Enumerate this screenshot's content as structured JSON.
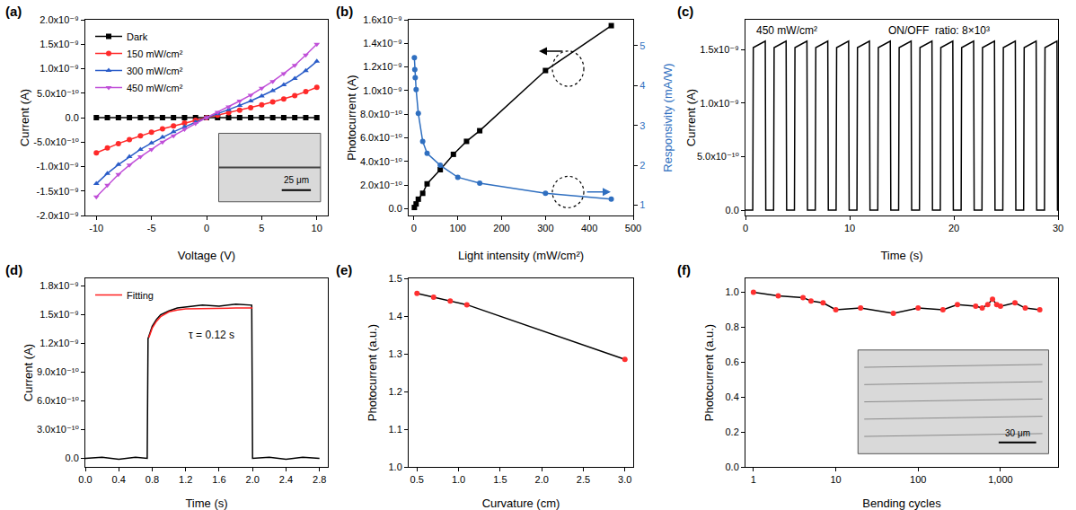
{
  "chart_data": [
    {
      "panel_label": "(a)",
      "type": "line",
      "x_label": "Voltage (V)",
      "y_label": "Current (A)",
      "x": [
        -10,
        -9,
        -8,
        -7,
        -6,
        -5,
        -4,
        -3,
        -2,
        -1,
        0,
        1,
        2,
        3,
        4,
        5,
        6,
        7,
        8,
        9,
        10
      ],
      "series": [
        {
          "name": "Dark",
          "color": "#000000",
          "marker": "square",
          "line_style": "solid",
          "values": [
            0,
            0,
            0,
            0,
            0,
            0,
            0,
            0,
            0,
            0,
            0,
            0,
            0,
            0,
            0,
            0,
            0,
            0,
            0,
            0,
            0
          ]
        },
        {
          "name": "150 mW/cm²",
          "color": "#ff2a2a",
          "marker": "circle",
          "line_style": "solid",
          "values": [
            -7.2e-10,
            -6.2e-10,
            -5.3e-10,
            -4.5e-10,
            -3.7e-10,
            -3e-10,
            -2.3e-10,
            -1.7e-10,
            -1.1e-10,
            -5.5e-11,
            0,
            5e-11,
            1e-10,
            1.5e-10,
            2e-10,
            2.6e-10,
            3.2e-10,
            3.8e-10,
            4.5e-10,
            5.3e-10,
            6.2e-10
          ]
        },
        {
          "name": "300 mW/cm²",
          "color": "#2a5cc8",
          "marker": "triangle-up",
          "line_style": "solid",
          "values": [
            -1.35e-09,
            -1.14e-09,
            -9.6e-10,
            -8e-10,
            -6.5e-10,
            -5.2e-10,
            -4e-10,
            -2.9e-10,
            -1.9e-10,
            -9e-11,
            0,
            8e-11,
            1.6e-10,
            2.5e-10,
            3.4e-10,
            4.4e-10,
            5.5e-10,
            6.7e-10,
            8e-10,
            9.6e-10,
            1.15e-09
          ]
        },
        {
          "name": "450 mW/cm²",
          "color": "#c04fd8",
          "marker": "triangle-down",
          "line_style": "solid",
          "values": [
            -1.62e-09,
            -1.38e-09,
            -1.16e-09,
            -9.7e-10,
            -8e-10,
            -6.5e-10,
            -5e-10,
            -3.7e-10,
            -2.4e-10,
            -1.2e-10,
            0,
            1.1e-10,
            2.2e-10,
            3.4e-10,
            4.6e-10,
            6e-10,
            7.4e-10,
            9e-10,
            1.07e-09,
            1.28e-09,
            1.5e-09
          ]
        }
      ],
      "xlim": [
        -11,
        11
      ],
      "xticks": [
        -10,
        -5,
        0,
        5,
        10
      ],
      "ylim": [
        -2e-09,
        2e-09
      ],
      "yticks": [
        {
          "value": -2e-09,
          "label": "-2.0x10⁻⁹"
        },
        {
          "value": -1.5e-09,
          "label": "-1.5x10⁻⁹"
        },
        {
          "value": -1e-09,
          "label": "-1.0x10⁻⁹"
        },
        {
          "value": -5e-10,
          "label": "-5.0x10⁻¹⁰"
        },
        {
          "value": 0,
          "label": "0.0"
        },
        {
          "value": 5e-10,
          "label": "5.0x10⁻¹⁰"
        },
        {
          "value": 1e-09,
          "label": "1.0x10⁻⁹"
        },
        {
          "value": 1.5e-09,
          "label": "1.5x10⁻⁹"
        },
        {
          "value": 2e-09,
          "label": "2.0x10⁻⁹"
        }
      ],
      "grid": false,
      "legend": "upper left",
      "inset_label": "25 μm"
    },
    {
      "panel_label": "(b)",
      "type": "line",
      "x_label": "Light intensity (mW/cm²)",
      "y_label": "Photocurrent (A)",
      "y2_label": "Responsivity (mA/W)",
      "series": [
        {
          "color": "#000000",
          "marker": "square",
          "line_style": "solid",
          "x": [
            1,
            5,
            10,
            20,
            30,
            60,
            90,
            120,
            150,
            300,
            450
          ],
          "values": [
            1e-11,
            4e-11,
            8e-11,
            1.3e-10,
            2.1e-10,
            3.3e-10,
            4.6e-10,
            5.7e-10,
            6.6e-10,
            1.17e-09,
            1.55e-09
          ]
        },
        {
          "color": "#2f6fc0",
          "marker": "circle",
          "line_style": "solid",
          "axis": "y2",
          "x": [
            1,
            2,
            3,
            5,
            10,
            20,
            30,
            60,
            100,
            150,
            300,
            450
          ],
          "values": [
            4.7,
            4.4,
            4.2,
            3.9,
            3.3,
            2.6,
            2.3,
            2.0,
            1.7,
            1.55,
            1.3,
            1.15
          ]
        }
      ],
      "xlim": [
        -12,
        500
      ],
      "xticks": [
        0,
        100,
        200,
        300,
        400,
        500
      ],
      "ylim": [
        -5.8e-11,
        1.6e-09
      ],
      "yticks": [
        {
          "value": 0,
          "label": "0.0"
        },
        {
          "value": 2e-10,
          "label": "2.0x10⁻¹⁰"
        },
        {
          "value": 4e-10,
          "label": "4.0x10⁻¹⁰"
        },
        {
          "value": 6e-10,
          "label": "6.0x10⁻¹⁰"
        },
        {
          "value": 8e-10,
          "label": "8.0x10⁻¹⁰"
        },
        {
          "value": 1e-09,
          "label": "1.0x10⁻⁹"
        },
        {
          "value": 1.2e-09,
          "label": "1.2x10⁻⁹"
        },
        {
          "value": 1.4e-09,
          "label": "1.4x10⁻⁹"
        },
        {
          "value": 1.6e-09,
          "label": "1.6x10⁻⁹"
        }
      ],
      "y2lim": [
        0.74,
        5.65
      ],
      "y2ticks": [
        1,
        2,
        3,
        4,
        5
      ],
      "grid": false
    },
    {
      "panel_label": "(c)",
      "type": "line",
      "x_label": "Time (s)",
      "y_label": "Current (A)",
      "annotations": [
        "450 mW/cm²",
        "ON/OFF  ratio: 8×10³"
      ],
      "x": [
        0,
        0.7,
        0.75,
        1.9,
        1.95,
        2.7,
        2.75,
        3.9,
        3.95,
        4.7,
        4.75,
        5.9,
        5.95,
        6.7,
        6.75,
        7.9,
        7.95,
        8.7,
        8.75,
        9.9,
        9.95,
        10.7,
        10.75,
        11.9,
        11.95,
        12.7,
        12.75,
        13.9,
        13.95,
        14.7,
        14.75,
        15.9,
        15.95,
        16.7,
        16.75,
        17.9,
        17.95,
        18.7,
        18.75,
        19.9,
        19.95,
        20.7,
        20.75,
        21.9,
        21.95,
        22.7,
        22.75,
        23.9,
        23.95,
        24.7,
        24.75,
        25.9,
        25.95,
        26.7,
        26.75,
        27.9,
        27.95,
        28.7,
        28.75,
        29.9,
        29.95,
        30
      ],
      "series": [
        {
          "color": "#000000",
          "line_style": "solid",
          "values": [
            0,
            0,
            1.52e-09,
            1.58e-09,
            0,
            0,
            1.52e-09,
            1.58e-09,
            0,
            0,
            1.52e-09,
            1.58e-09,
            0,
            0,
            1.52e-09,
            1.58e-09,
            0,
            0,
            1.52e-09,
            1.58e-09,
            0,
            0,
            1.52e-09,
            1.58e-09,
            0,
            0,
            1.52e-09,
            1.58e-09,
            0,
            0,
            1.52e-09,
            1.58e-09,
            0,
            0,
            1.52e-09,
            1.58e-09,
            0,
            0,
            1.52e-09,
            1.58e-09,
            0,
            0,
            1.52e-09,
            1.58e-09,
            0,
            0,
            1.52e-09,
            1.58e-09,
            0,
            0,
            1.52e-09,
            1.58e-09,
            0,
            0,
            1.52e-09,
            1.58e-09,
            0,
            0,
            1.52e-09,
            1.58e-09,
            0,
            0
          ]
        }
      ],
      "xlim": [
        0,
        30
      ],
      "xticks": [
        0,
        10,
        20,
        30
      ],
      "ylim": [
        -5e-11,
        1.78e-09
      ],
      "yticks": [
        {
          "value": 0,
          "label": "0.0"
        },
        {
          "value": 5e-10,
          "label": "5.0x10⁻¹⁰"
        },
        {
          "value": 1e-09,
          "label": "1.0x10⁻⁹"
        },
        {
          "value": 1.5e-09,
          "label": "1.5x10⁻⁹"
        }
      ],
      "grid": false
    },
    {
      "panel_label": "(d)",
      "type": "line",
      "x_label": "Time (s)",
      "y_label": "Current (A)",
      "annotations": [
        "τ = 0.12 s"
      ],
      "series": [
        {
          "color": "#000000",
          "line_style": "solid",
          "x": [
            0,
            0.2,
            0.4,
            0.6,
            0.74,
            0.75,
            0.8,
            0.85,
            0.9,
            1.0,
            1.1,
            1.2,
            1.4,
            1.6,
            1.8,
            1.99,
            2.0,
            2.2,
            2.4,
            2.6,
            2.8
          ],
          "values": [
            0,
            1e-11,
            -1e-11,
            1e-11,
            0,
            1.25e-09,
            1.38e-09,
            1.45e-09,
            1.5e-09,
            1.54e-09,
            1.57e-09,
            1.58e-09,
            1.6e-09,
            1.59e-09,
            1.61e-09,
            1.6e-09,
            0,
            1e-11,
            -1e-11,
            1e-11,
            0
          ]
        },
        {
          "name": "Fitting",
          "color": "#ff2020",
          "line_style": "solid",
          "x": [
            0.76,
            0.8,
            0.85,
            0.9,
            1.0,
            1.1,
            1.2,
            1.4,
            1.6,
            1.8,
            2.0
          ],
          "values": [
            1.26e-09,
            1.36e-09,
            1.43e-09,
            1.48e-09,
            1.53e-09,
            1.55e-09,
            1.56e-09,
            1.565e-09,
            1.57e-09,
            1.57e-09,
            1.57e-09
          ]
        }
      ],
      "xlim": [
        0,
        2.9
      ],
      "xticks": [
        {
          "value": 0,
          "label": "0.0"
        },
        0.4,
        0.8,
        1.2,
        1.6,
        {
          "value": 2,
          "label": "2.0"
        },
        2.4,
        2.8
      ],
      "ylim": [
        -9e-11,
        1.88e-09
      ],
      "yticks": [
        {
          "value": 0,
          "label": "0.0"
        },
        {
          "value": 3e-10,
          "label": "3.0x10⁻¹⁰"
        },
        {
          "value": 6e-10,
          "label": "6.0x10⁻¹⁰"
        },
        {
          "value": 9e-10,
          "label": "9.0x10⁻¹⁰"
        },
        {
          "value": 1.2e-09,
          "label": "1.2x10⁻⁹"
        },
        {
          "value": 1.5e-09,
          "label": "1.5x10⁻⁹"
        },
        {
          "value": 1.8e-09,
          "label": "1.8x10⁻⁹"
        }
      ],
      "grid": false,
      "legend": "upper left"
    },
    {
      "panel_label": "(e)",
      "type": "line",
      "x_label": "Curvature (cm)",
      "y_label": "Photocurrent (a.u.)",
      "x": [
        0.5,
        0.7,
        0.9,
        1.1,
        3.0
      ],
      "series": [
        {
          "color": "#000000",
          "colors": [
            "#ff3030",
            "#ff3030",
            "#ff3030",
            "#ff3030",
            "#ff3030"
          ],
          "marker": "circle",
          "line_style": "solid",
          "values": [
            1.46,
            1.45,
            1.44,
            1.43,
            1.285
          ]
        }
      ],
      "xlim": [
        0.4,
        3.1
      ],
      "xticks": [
        0.5,
        {
          "value": 1,
          "label": "1.0"
        },
        1.5,
        {
          "value": 2,
          "label": "2.0"
        },
        2.5,
        {
          "value": 3,
          "label": "3.0"
        }
      ],
      "ylim": [
        1,
        1.5
      ],
      "yticks": [
        {
          "value": 1,
          "label": "1.0"
        },
        1.1,
        1.2,
        1.3,
        1.4,
        1.5
      ],
      "grid": false
    },
    {
      "panel_label": "(f)",
      "type": "line",
      "x_label": "Bending cycles",
      "y_label": "Photocurrent (a.u.)",
      "x": [
        1,
        2,
        4,
        5,
        7,
        10,
        20,
        50,
        100,
        200,
        300,
        500,
        600,
        700,
        800,
        900,
        1000,
        1500,
        2000,
        3000
      ],
      "series": [
        {
          "color": "#000000",
          "colors": [
            "#ff3030",
            "#ff3030",
            "#ff3030",
            "#ff3030",
            "#ff3030",
            "#ff3030",
            "#ff3030",
            "#ff3030",
            "#ff3030",
            "#ff3030",
            "#ff3030",
            "#ff3030",
            "#ff3030",
            "#ff3030",
            "#ff3030",
            "#ff3030",
            "#ff3030",
            "#ff3030",
            "#ff3030",
            "#ff3030"
          ],
          "marker": "circle",
          "line_style": "solid",
          "values": [
            1,
            0.98,
            0.97,
            0.95,
            0.94,
            0.9,
            0.91,
            0.88,
            0.91,
            0.9,
            0.93,
            0.92,
            0.91,
            0.93,
            0.96,
            0.93,
            0.92,
            0.94,
            0.91,
            0.9
          ]
        }
      ],
      "log": "x",
      "xlim": [
        0.8,
        5000
      ],
      "xticks": [
        1,
        10,
        100,
        {
          "value": 1000,
          "label": "1,000"
        }
      ],
      "ylim": [
        0,
        1.08
      ],
      "yticks": [
        {
          "value": 0,
          "label": "0.0"
        },
        0.2,
        0.4,
        0.6,
        0.8,
        {
          "value": 1,
          "label": "1.0"
        }
      ],
      "grid": false,
      "inset_label": "30 μm"
    }
  ]
}
